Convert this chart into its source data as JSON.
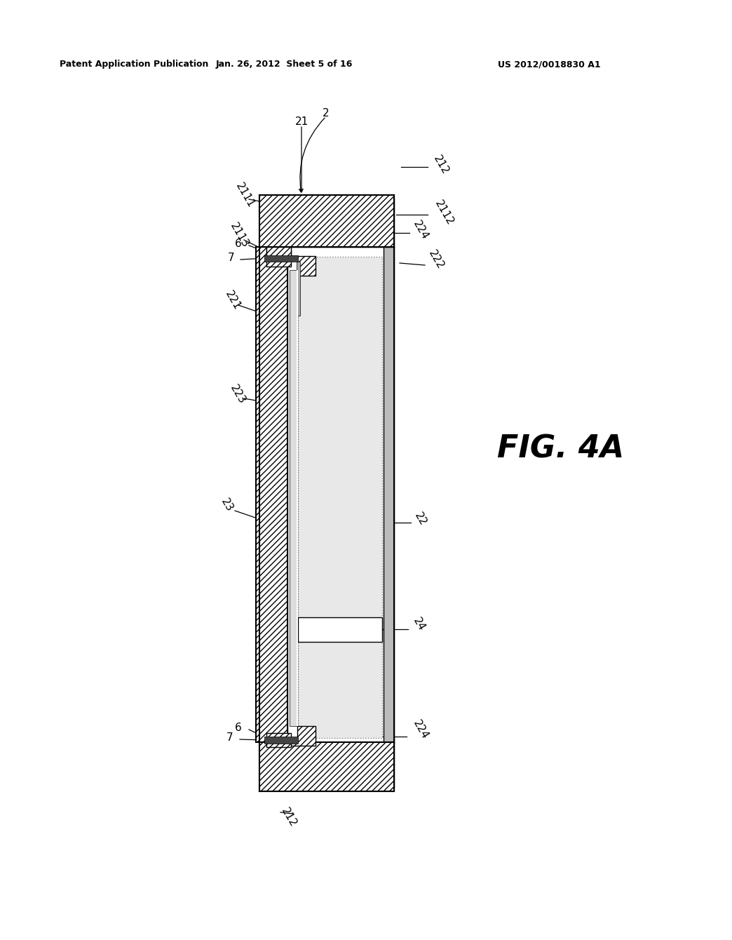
{
  "bg_color": "#ffffff",
  "header_left": "Patent Application Publication",
  "header_mid": "Jan. 26, 2012  Sheet 5 of 16",
  "header_right": "US 2012/0018830 A1",
  "fig_label": "FIG. 4A",
  "line_color": "#000000",
  "labels": [
    "2",
    "21",
    "212",
    "2111",
    "2112",
    "2113",
    "221",
    "222",
    "223",
    "224",
    "22",
    "23",
    "24",
    "6",
    "7"
  ],
  "notes": {
    "structure": "Cross-section view. Top cap (21) hatched wide block. Below: left hatched plate (23) narrower, right frame (22) with dotted outline. Inner layers 221,222,223. Connectors 224 top/bottom. Leads 7 near connectors 6."
  }
}
